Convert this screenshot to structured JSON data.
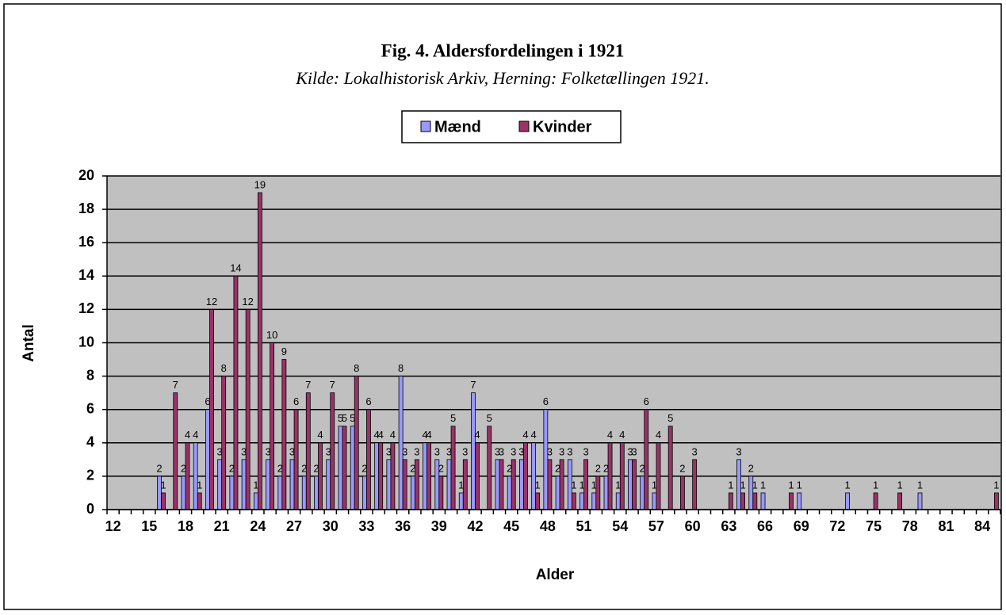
{
  "chart_data": {
    "type": "bar",
    "title": "Fig. 4. Aldersfordelingen i 1921",
    "subtitle": "Kilde: Lokalhistorisk Arkiv, Herning: Folketællingen 1921.",
    "x_label": "Alder",
    "y_label": "Antal",
    "categories": [
      "12",
      null,
      null,
      "15",
      null,
      null,
      "18",
      null,
      null,
      "21",
      null,
      null,
      "24",
      null,
      null,
      "27",
      null,
      null,
      "30",
      null,
      null,
      "33",
      null,
      null,
      "36",
      null,
      null,
      "39",
      null,
      null,
      "42",
      null,
      null,
      "45",
      null,
      null,
      "48",
      null,
      null,
      "51",
      null,
      null,
      "54",
      null,
      null,
      "57",
      null,
      null,
      "60",
      null,
      null,
      "63",
      null,
      null,
      "66",
      null,
      null,
      "69",
      null,
      null,
      "72",
      null,
      null,
      "75",
      null,
      null,
      "78",
      null,
      null,
      "81",
      null,
      null,
      "84",
      null
    ],
    "series": [
      {
        "name": "Mænd",
        "color": "#9999ff",
        "values": [
          0,
          0,
          0,
          0,
          2,
          0,
          2,
          4,
          6,
          3,
          2,
          3,
          1,
          3,
          2,
          3,
          2,
          2,
          3,
          5,
          5,
          2,
          4,
          3,
          8,
          2,
          4,
          3,
          3,
          1,
          7,
          0,
          3,
          2,
          3,
          4,
          6,
          2,
          3,
          1,
          1,
          2,
          1,
          3,
          2,
          1,
          0,
          0,
          0,
          0,
          0,
          0,
          3,
          2,
          1,
          0,
          0,
          1,
          0,
          0,
          0,
          1,
          0,
          0,
          0,
          0,
          0,
          1,
          0,
          0,
          0,
          0,
          0,
          0
        ]
      },
      {
        "name": "Kvinder",
        "color": "#993366",
        "values": [
          0,
          0,
          0,
          0,
          1,
          7,
          4,
          1,
          12,
          8,
          14,
          12,
          19,
          10,
          9,
          6,
          7,
          4,
          7,
          5,
          8,
          6,
          4,
          4,
          3,
          3,
          4,
          2,
          5,
          3,
          4,
          5,
          3,
          3,
          4,
          1,
          3,
          3,
          1,
          3,
          2,
          4,
          4,
          3,
          6,
          4,
          5,
          2,
          3,
          0,
          0,
          1,
          1,
          1,
          0,
          0,
          1,
          0,
          0,
          0,
          0,
          0,
          0,
          1,
          0,
          1,
          0,
          0,
          0,
          0,
          0,
          0,
          0,
          1
        ]
      }
    ],
    "ylim": [
      0,
      20
    ],
    "yticks": [
      0,
      2,
      4,
      6,
      8,
      10,
      12,
      14,
      16,
      18,
      20
    ],
    "grid": true,
    "plot_background": "#c0c0c0"
  }
}
